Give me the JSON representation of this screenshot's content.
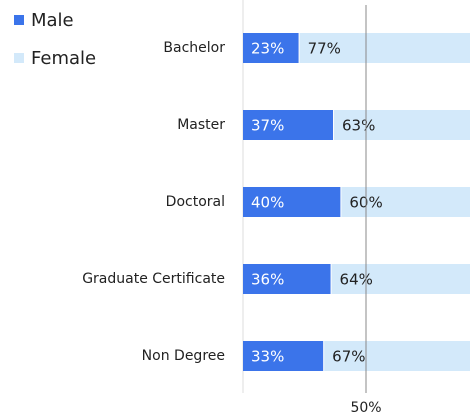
{
  "chart_data": {
    "type": "stacked-bar-horizontal",
    "categories": [
      "Bachelor",
      "Master",
      "Doctoral",
      "Graduate Certificate",
      "Non Degree"
    ],
    "series": [
      {
        "name": "Male",
        "color": "#3b74ea",
        "values": [
          23,
          37,
          40,
          36,
          33
        ],
        "value_labels": [
          "23%",
          "37%",
          "40%",
          "36%",
          "33%"
        ]
      },
      {
        "name": "Female",
        "color": "#d3e9fa",
        "values": [
          77,
          63,
          60,
          64,
          67
        ],
        "value_labels": [
          "77%",
          "63%",
          "60%",
          "64%",
          "67%"
        ]
      }
    ],
    "xlim": [
      0,
      100
    ],
    "xticks": [
      {
        "value": 50,
        "label": "50%"
      }
    ],
    "legend": "top-left"
  }
}
